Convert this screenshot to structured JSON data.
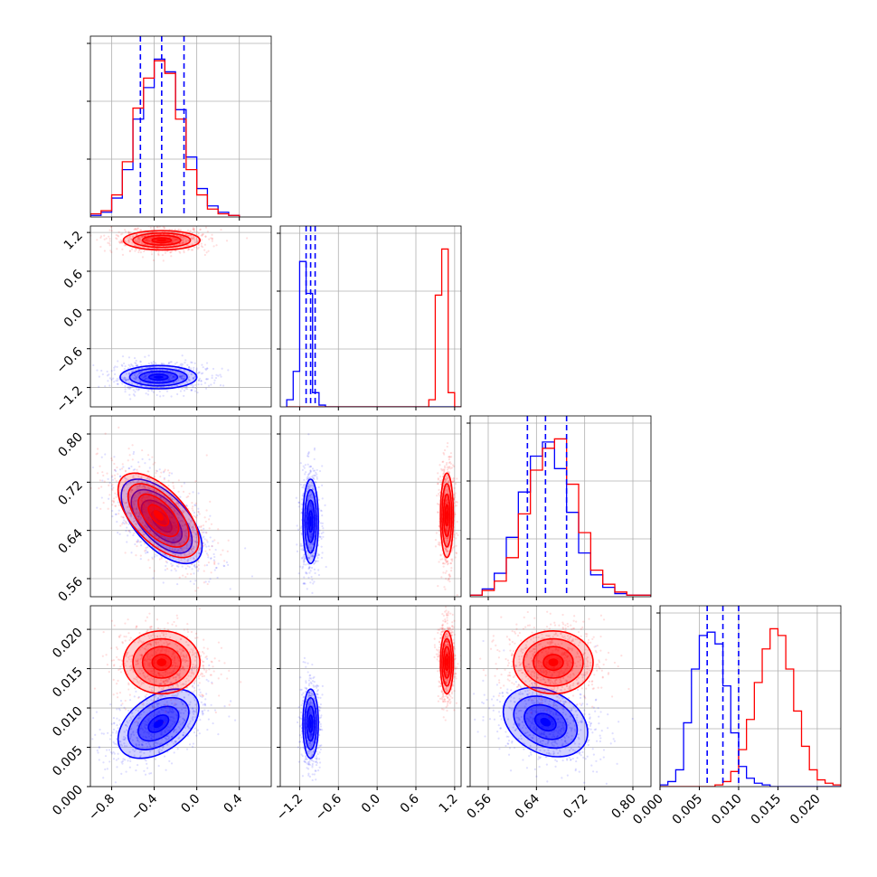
{
  "chart_data": {
    "type": "corner",
    "grid": true,
    "series": [
      {
        "name": "",
        "color": "#0000ff"
      },
      {
        "name": "",
        "color": "#ff0000"
      }
    ],
    "parameters": [
      {
        "index": 0,
        "range": [
          -1.0,
          0.7
        ],
        "ticks": [
          -0.8,
          -0.4,
          0.0,
          0.4
        ],
        "tick_labels": [
          "−0.8",
          "−0.4",
          "0.0",
          "0.4"
        ]
      },
      {
        "index": 1,
        "range": [
          -1.5,
          1.3
        ],
        "ticks": [
          -1.2,
          -0.6,
          0.0,
          0.6,
          1.2
        ],
        "tick_labels": [
          "−1.2",
          "−0.6",
          "0.0",
          "0.6",
          "1.2"
        ]
      },
      {
        "index": 2,
        "range": [
          0.53,
          0.83
        ],
        "ticks": [
          0.56,
          0.64,
          0.72,
          0.8
        ],
        "tick_labels": [
          "0.56",
          "0.64",
          "0.72",
          "0.80"
        ]
      },
      {
        "index": 3,
        "range": [
          0.0,
          0.023
        ],
        "ticks": [
          0.0,
          0.005,
          0.01,
          0.015,
          0.02
        ],
        "tick_labels": [
          "0.000",
          "0.005",
          "0.010",
          "0.015",
          "0.020"
        ]
      }
    ],
    "histograms": [
      {
        "param": 0,
        "bin_edges": [
          -1.0,
          -0.9,
          -0.8,
          -0.7,
          -0.6,
          -0.5,
          -0.4,
          -0.3,
          -0.2,
          -0.1,
          0.0,
          0.1,
          0.2,
          0.3,
          0.4
        ],
        "blue": [
          1,
          3,
          12,
          30,
          62,
          82,
          100,
          92,
          68,
          38,
          18,
          7,
          3,
          1
        ],
        "red": [
          2,
          4,
          14,
          35,
          69,
          88,
          99,
          91,
          62,
          30,
          14,
          5,
          2,
          1
        ],
        "quantiles_blue": [
          -0.53,
          -0.33,
          -0.12
        ]
      },
      {
        "param": 1,
        "bin_edges": [
          -1.4,
          -1.3,
          -1.2,
          -1.1,
          -1.0,
          -0.9,
          -0.8,
          -0.7,
          0.8,
          0.9,
          1.0,
          1.1,
          1.2,
          1.3
        ],
        "blue": [
          4,
          20,
          82,
          64,
          8,
          1,
          0,
          0,
          0,
          0,
          0,
          0,
          0
        ],
        "red": [
          0,
          0,
          0,
          0,
          0,
          0,
          0,
          0,
          4,
          63,
          89,
          8,
          0
        ],
        "quantiles_blue": [
          -1.1,
          -1.03,
          -0.96
        ]
      },
      {
        "param": 2,
        "bin_edges": [
          0.53,
          0.55,
          0.57,
          0.59,
          0.61,
          0.63,
          0.65,
          0.67,
          0.69,
          0.71,
          0.73,
          0.75,
          0.77,
          0.79,
          0.81,
          0.83
        ],
        "blue": [
          1,
          5,
          15,
          38,
          67,
          90,
          99,
          82,
          54,
          28,
          14,
          6,
          2,
          1,
          1
        ],
        "red": [
          1,
          4,
          10,
          25,
          53,
          81,
          95,
          101,
          72,
          41,
          17,
          8,
          3,
          1,
          1
        ],
        "quantiles_blue": [
          0.625,
          0.655,
          0.69
        ]
      },
      {
        "param": 3,
        "bin_edges": [
          0.0,
          0.001,
          0.002,
          0.003,
          0.004,
          0.005,
          0.006,
          0.007,
          0.008,
          0.009,
          0.01,
          0.011,
          0.012,
          0.013,
          0.014,
          0.015,
          0.016,
          0.017,
          0.018,
          0.019,
          0.02,
          0.021,
          0.022,
          0.023
        ],
        "blue": [
          1,
          3,
          10,
          38,
          70,
          90,
          92,
          85,
          60,
          32,
          12,
          5,
          2,
          1,
          0,
          0,
          0,
          0,
          0,
          0,
          0,
          0,
          0
        ],
        "red": [
          0,
          0,
          0,
          0,
          0,
          0,
          0,
          1,
          3,
          9,
          22,
          40,
          62,
          82,
          94,
          90,
          70,
          45,
          24,
          10,
          4,
          2,
          1
        ],
        "quantiles_blue": [
          0.006,
          0.008,
          0.01
        ]
      }
    ],
    "joint": [
      {
        "x_param": 0,
        "y_param": 1,
        "blobs": [
          {
            "color": "#0000ff",
            "center": [
              -0.36,
              -1.04
            ],
            "sigma": [
              0.18,
              0.09
            ],
            "rho": 0.0
          },
          {
            "color": "#ff0000",
            "center": [
              -0.33,
              1.08
            ],
            "sigma": [
              0.18,
              0.075
            ],
            "rho": 0.0
          }
        ]
      },
      {
        "x_param": 0,
        "y_param": 2,
        "blobs": [
          {
            "color": "#0000ff",
            "center": [
              -0.33,
              0.655
            ],
            "sigma": [
              0.19,
              0.035
            ],
            "rho": -0.6
          },
          {
            "color": "#ff0000",
            "center": [
              -0.36,
              0.665
            ],
            "sigma": [
              0.19,
              0.035
            ],
            "rho": -0.6
          }
        ]
      },
      {
        "x_param": 0,
        "y_param": 3,
        "blobs": [
          {
            "color": "#0000ff",
            "center": [
              -0.36,
              0.008
            ],
            "sigma": [
              0.19,
              0.0022
            ],
            "rho": 0.45
          },
          {
            "color": "#ff0000",
            "center": [
              -0.33,
              0.0158
            ],
            "sigma": [
              0.18,
              0.002
            ],
            "rho": 0.0
          }
        ]
      },
      {
        "x_param": 1,
        "y_param": 2,
        "blobs": [
          {
            "color": "#0000ff",
            "center": [
              -1.03,
              0.655
            ],
            "sigma": [
              0.06,
              0.035
            ],
            "rho": 0.0
          },
          {
            "color": "#ff0000",
            "center": [
              1.08,
              0.665
            ],
            "sigma": [
              0.05,
              0.035
            ],
            "rho": 0.0
          }
        ]
      },
      {
        "x_param": 1,
        "y_param": 3,
        "blobs": [
          {
            "color": "#0000ff",
            "center": [
              -1.03,
              0.008
            ],
            "sigma": [
              0.06,
              0.0022
            ],
            "rho": 0.0
          },
          {
            "color": "#ff0000",
            "center": [
              1.08,
              0.0158
            ],
            "sigma": [
              0.05,
              0.002
            ],
            "rho": 0.0
          }
        ]
      },
      {
        "x_param": 2,
        "y_param": 3,
        "blobs": [
          {
            "color": "#0000ff",
            "center": [
              0.655,
              0.0082
            ],
            "sigma": [
              0.035,
              0.0022
            ],
            "rho": -0.3
          },
          {
            "color": "#ff0000",
            "center": [
              0.668,
              0.0158
            ],
            "sigma": [
              0.033,
              0.002
            ],
            "rho": 0.0
          }
        ]
      }
    ]
  }
}
